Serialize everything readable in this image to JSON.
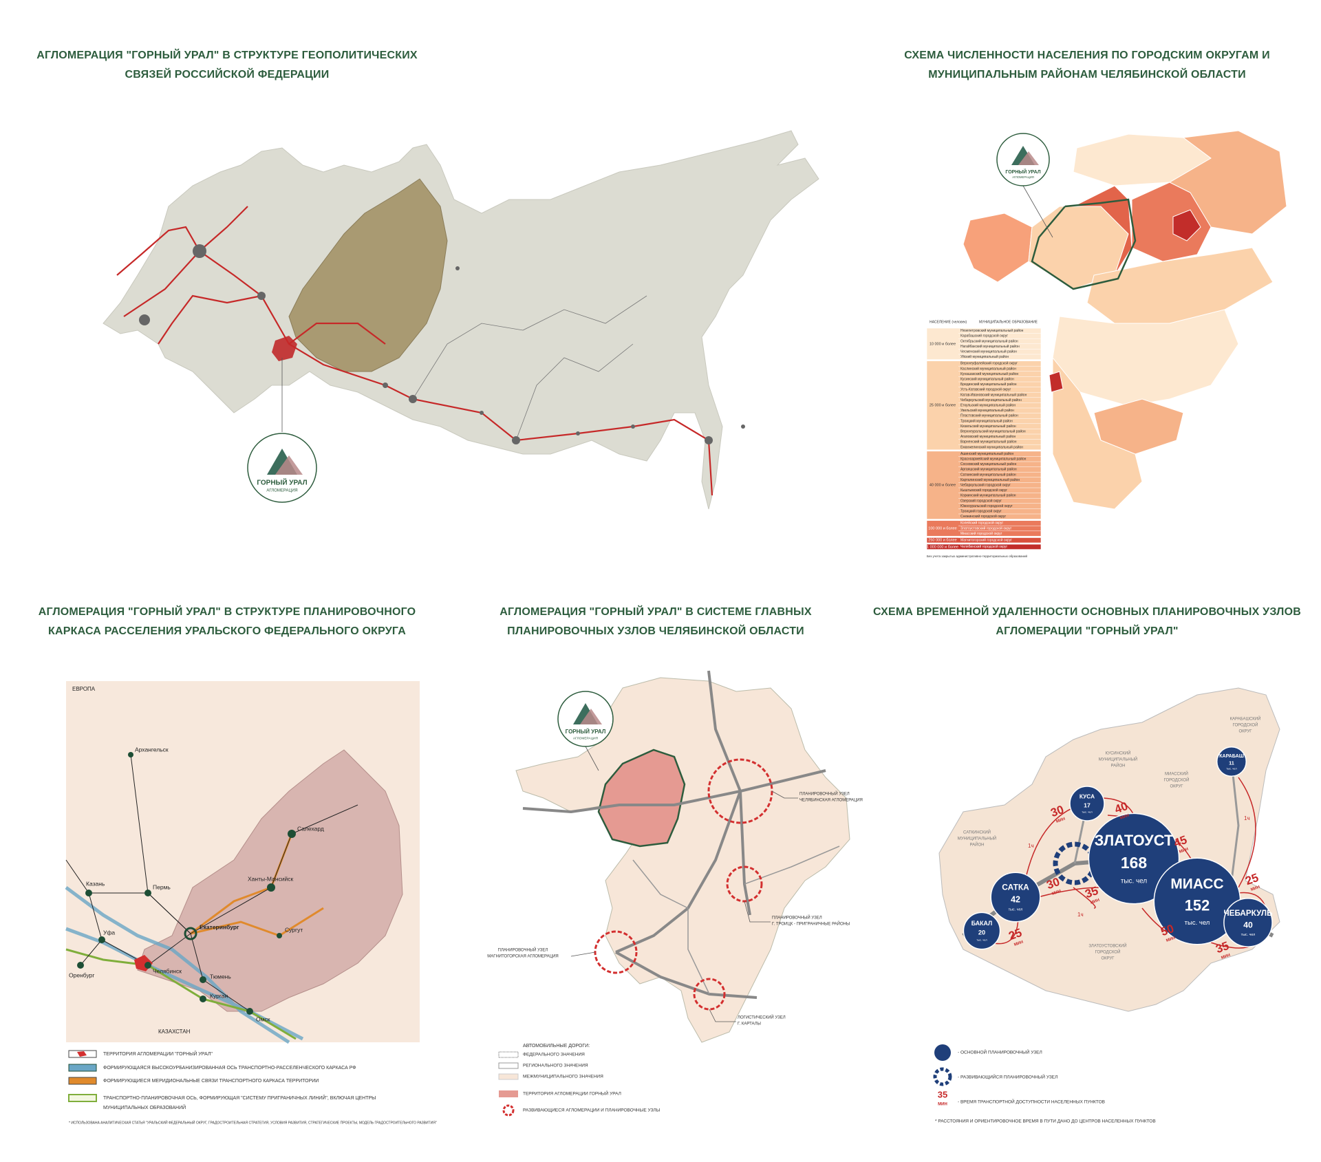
{
  "geopolitics": {
    "title_lines": [
      "АГЛОМЕРАЦИЯ \"ГОРНЫЙ УРАЛ\" В СТРУКТУРЕ ГЕОПОЛИТИЧЕСКИХ",
      "СВЯЗЕЙ РОССИЙСКОЙ ФЕДЕРАЦИИ"
    ],
    "logo": {
      "name": "ГОРНЫЙ УРАЛ",
      "subtitle": "АГЛОМЕРАЦИЯ"
    }
  },
  "population": {
    "title_lines": [
      "СХЕМА ЧИСЛЕННОСТИ НАСЕЛЕНИЯ ПО ГОРОДСКИМ ОКРУГАМ И",
      "МУНИЦИПАЛЬНЫМ РАЙОНАМ ЧЕЛЯБИНСКОЙ ОБЛАСТИ"
    ],
    "logo": {
      "name": "ГОРНЫЙ УРАЛ",
      "subtitle": "АГЛОМЕРАЦИЯ"
    },
    "legend": {
      "header_population": "НАСЕЛЕНИЕ (человек)",
      "header_municipality": "МУНИЦИПАЛЬНОЕ ОБРАЗОВАНИЕ",
      "groups": [
        {
          "range": "10 000 и более",
          "color": "#fde8d0",
          "items": [
            "Нязепетровский муниципальный район",
            "Карабашский городской округ",
            "Октябрьский муниципальный район",
            "Нагайбакский муниципальный район",
            "Чесменский муниципальный район",
            "Уйский муниципальный район"
          ]
        },
        {
          "range": "25 000 и более",
          "color": "#fbd2ab",
          "items": [
            "Верхнеуфалейский городской округ",
            "Каслинский муниципальный район",
            "Кунашакский муниципальный район",
            "Кусинский муниципальный район",
            "Брединский муниципальный район",
            "Усть-Катавский городской округ",
            "Катав-Ивановский муниципальный район",
            "Чебаркульский муниципальный район",
            "Еткульский муниципальный район",
            "Увельский муниципальный район",
            "Пластовский муниципальный район",
            "Троицкий муниципальный район",
            "Кизильский муниципальный район",
            "Верхнеуральский муниципальный район",
            "Агаповский муниципальный район",
            "Варненский муниципальный район",
            "Еманжелинский муниципальный район"
          ]
        },
        {
          "range": "40 000 и более",
          "color": "#f6b389",
          "items": [
            "Ашинский муниципальный район",
            "Красноармейский муниципальный район",
            "Сосновский муниципальный район",
            "Аргаяшский муниципальный район",
            "Саткинский муниципальный район",
            "Карталинский муниципальный район",
            "Чебаркульский городской округ",
            "Кыштымский городской округ",
            "Коркинский муниципальный район",
            "Озерский городской округ",
            "Южноуральский городской округ",
            "Троицкий городской округ",
            "Снежинский городской округ"
          ]
        },
        {
          "range": "100 000 и более",
          "color": "#ea7a5c",
          "items": [
            "Копейский городской округ",
            "Златоустовский городской округ",
            "Миасский городской округ"
          ]
        },
        {
          "range": "250 000 и более",
          "color": "#d9503d",
          "items": [
            "Магнитогорский городской округ"
          ]
        },
        {
          "range": "1 000 000 и более",
          "color": "#c22d2a",
          "items": [
            "Челябинский городской округ"
          ]
        }
      ],
      "note": "Без учета закрытых административно-территориальных образований"
    }
  },
  "framework": {
    "title_lines": [
      "АГЛОМЕРАЦИЯ \"ГОРНЫЙ УРАЛ\" В СТРУКТУРЕ ПЛАНИРОВОЧНОГО",
      "КАРКАСА РАССЕЛЕНИЯ УРАЛЬСКОГО ФЕДЕРАЛЬНОГО ОКРУГА"
    ],
    "places": [
      "ЕВРОПА",
      "Архангельск",
      "Салехард",
      "Ханты-Мансийск",
      "Екатеринбург",
      "Пермь",
      "Казань",
      "Уфа",
      "Оренбург",
      "Челябинск",
      "Тюмень",
      "Курган",
      "Омск",
      "Сургут",
      "КАЗАХСТАН"
    ],
    "legend": [
      [
        "ТЕРРИТОРИЯ АГЛОМЕРАЦИИ \"ГОРНЫЙ УРАЛ\""
      ],
      [
        "ФОРМИРУЮЩАЯСЯ ВЫСОКОУРБАНИЗИРОВАННАЯ ОСЬ ТРАНСПОРТНО-РАССЕЛЕНЧЕСКОГО КАРКАСА РФ"
      ],
      [
        "ФОРМИРУЮЩИЕСЯ МЕРИДИОНАЛЬНЫЕ СВЯЗИ ТРАНСПОРТНОГО КАРКАСА ТЕРРИТОРИИ"
      ],
      [
        "ТРАНСПОРТНО-ПЛАНИРОВОЧНАЯ ОСЬ, ФОРМИРУЮЩАЯ \"СИСТЕМУ ПРИГРАНИЧНЫХ ЛИНИЙ\", ВКЛЮЧАЯ ЦЕНТРЫ",
        "МУНИЦИПАЛЬНЫХ ОБРАЗОВАНИЙ"
      ]
    ],
    "note": "* ИСПОЛЬЗОВАНА АНАЛИТИЧЕСКАЯ СТАТЬЯ \"УРАЛЬСКИЙ ФЕДЕРАЛЬНЫЙ ОКРУГ, ГРАДОСТРОИТЕЛЬНАЯ СТРАТЕГИЯ, УСЛОВИЯ РАЗВИТИЯ, СТРАТЕГИЧЕСКИЕ ПРОЕКТЫ, МОДЕЛЬ ГРАДОСТРОИТЕЛЬНОГО РАЗВИТИЯ\""
  },
  "nodes": {
    "title_lines": [
      "АГЛОМЕРАЦИЯ \"ГОРНЫЙ УРАЛ\" В СИСТЕМЕ ГЛАВНЫХ",
      "ПЛАНИРОВОЧНЫХ УЗЛОВ ЧЕЛЯБИНСКОЙ ОБЛАСТИ"
    ],
    "logo": {
      "name": "ГОРНЫЙ УРАЛ",
      "subtitle": "АГЛОМЕРАЦИЯ"
    },
    "callouts": [
      [
        "ПЛАНИРОВОЧНЫЙ УЗЕЛ",
        "ЧЕЛЯБИНСКАЯ АГЛОМЕРАЦИЯ"
      ],
      [
        "ПЛАНИРОВОЧНЫЙ УЗЕЛ",
        "Г. ТРОИЦК - ПРИГРАНИЧНЫЕ РАЙОНЫ"
      ],
      [
        "ПЛАНИРОВОЧНЫЙ УЗЕЛ",
        "МАГНИТОГОРСКАЯ АГЛОМЕРАЦИЯ"
      ],
      [
        "ЛОГИСТИЧЕСКИЙ УЗЕЛ",
        "Г. КАРТАЛЫ"
      ]
    ],
    "legend": {
      "heading": "АВТОМОБИЛЬНЫЕ ДОРОГИ:",
      "roads": [
        "ФЕДЕРАЛЬНОГО ЗНАЧЕНИЯ",
        "РЕГИОНАЛЬНОГО ЗНАЧЕНИЯ",
        "МЕЖМУНИЦИПАЛЬНОГО ЗНАЧЕНИЯ"
      ],
      "territory": "ТЕРРИТОРИЯ АГЛОМЕРАЦИИ ГОРНЫЙ УРАЛ",
      "developing": "РАЗВИВАЮЩИЕСЯ АГЛОМЕРАЦИИ И ПЛАНИРОВОЧНЫЕ УЗЛЫ"
    }
  },
  "timing": {
    "title_lines": [
      "СХЕМА ВРЕМЕННОЙ УДАЛЕННОСТИ ОСНОВНЫХ ПЛАНИРОВОЧНЫХ УЗЛОВ",
      "АГЛОМЕРАЦИИ \"ГОРНЫЙ УРАЛ\""
    ],
    "nodes": [
      {
        "name": "ЗЛАТОУСТ",
        "population": 168,
        "unit": "тыс. чел"
      },
      {
        "name": "МИАСС",
        "population": 152,
        "unit": "тыс. чел"
      },
      {
        "name": "САТКА",
        "population": 42,
        "unit": "тыс. чел"
      },
      {
        "name": "КУСА",
        "population": 17,
        "unit": "тыс. чел"
      },
      {
        "name": "КАРАБАШ",
        "population": 11,
        "unit": "тыс. чел"
      },
      {
        "name": "ЧЕБАРКУЛЬ",
        "population": 40,
        "unit": "тыс. чел"
      },
      {
        "name": "БАКАЛ",
        "population": 20,
        "unit": "тыс. чел"
      }
    ],
    "times": [
      "30",
      "40",
      "45",
      "30",
      "35",
      "25",
      "50",
      "35",
      "25"
    ],
    "time_unit": "МИН",
    "hour_marks": [
      "1ч",
      "1ч",
      "1ч"
    ],
    "districts": [
      [
        "САТКИНСКИЙ",
        "МУНИЦИПАЛЬНЫЙ",
        "РАЙОН"
      ],
      [
        "КУСИНСКИЙ",
        "МУНИЦИПАЛЬНЫЙ",
        "РАЙОН"
      ],
      [
        "МИАССКИЙ",
        "ГОРОДСКОЙ",
        "ОКРУГ"
      ],
      [
        "ЗЛАТОУСТОВСКИЙ",
        "ГОРОДСКОЙ",
        "ОКРУГ"
      ],
      [
        "КАРАБАШСКИЙ",
        "ГОРОДСКОЙ",
        "ОКРУГ"
      ]
    ],
    "legend": [
      "- ОСНОВНОЙ ПЛАНИРОВОЧНЫЙ УЗЕЛ",
      "- РАЗВИВАЮЩИЙСЯ ПЛАНИРОВОЧНЫЙ УЗЕЛ",
      "- ВРЕМЯ ТРАНСПОРТНОЙ ДОСТУПНОСТИ НАСЕЛЕННЫХ ПУНКТОВ"
    ],
    "legend_time": "35",
    "note": "* РАССТОЯНИЯ И ОРИЕНТИРОВОЧНОЕ ВРЕМЯ В ПУТИ ДАНО ДО ЦЕНТРОВ НАСЕЛЕННЫХ ПУНКТОВ"
  }
}
